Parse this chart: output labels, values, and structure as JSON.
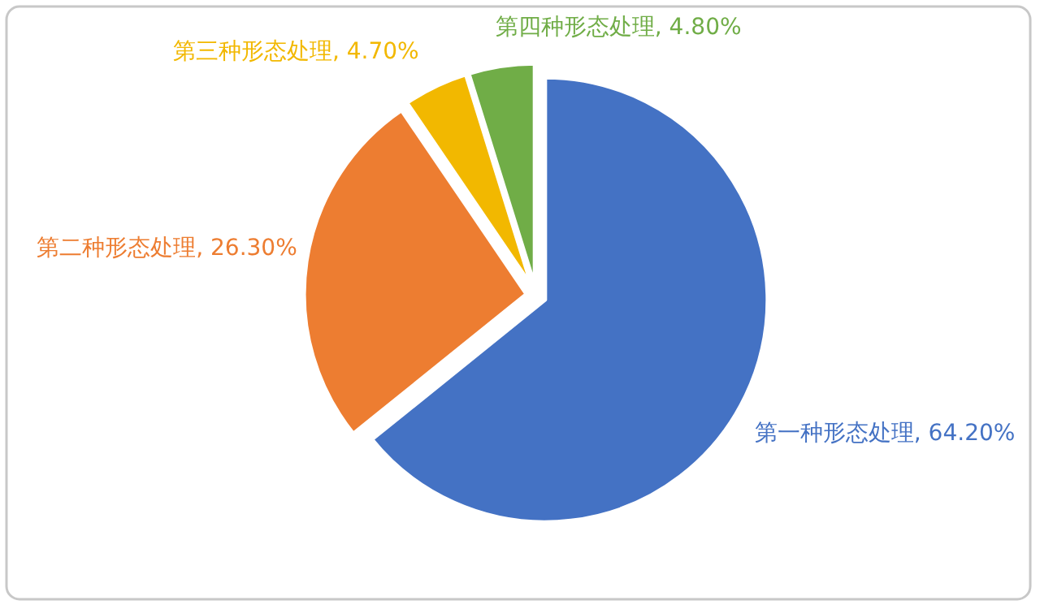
{
  "chart_data": {
    "type": "pie",
    "categories": [
      "第一种形态处理",
      "第二种形态处理",
      "第三种形态处理",
      "第四种形态处理"
    ],
    "values": [
      64.2,
      26.3,
      4.7,
      4.8
    ],
    "colors": [
      "#4472c4",
      "#ed7d31",
      "#f2b800",
      "#70ad47"
    ],
    "value_labels": [
      "64.20%",
      "26.30%",
      "4.70%",
      "4.80%"
    ],
    "legend": false
  }
}
